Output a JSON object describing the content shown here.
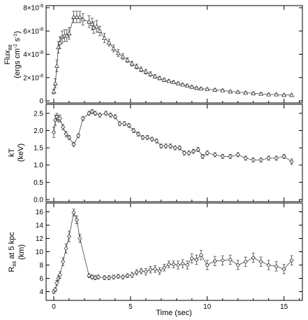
{
  "chart_data": [
    {
      "type": "line",
      "marker": "triangle",
      "ylabel_line1": "Flux",
      "ylabel_sub": "88",
      "ylabel_line2": "(ergs cm",
      "ylabel_sup1": "-2",
      "ylabel_line2b": " s",
      "ylabel_sup2": "-1",
      "ylabel_line2c": ")",
      "xlim": [
        -0.5,
        16.2
      ],
      "ylim": [
        0,
        8e-08
      ],
      "yticks": [
        {
          "value": 0,
          "mant": "0",
          "exp": ""
        },
        {
          "value": 2e-08,
          "mant": "2×10",
          "exp": "-8"
        },
        {
          "value": 4e-08,
          "mant": "4×10",
          "exp": "-8"
        },
        {
          "value": 6e-08,
          "mant": "6×10",
          "exp": "-8"
        },
        {
          "value": 8e-08,
          "mant": "8×10",
          "exp": "-8"
        }
      ],
      "x": [
        0.0,
        0.1,
        0.2,
        0.3,
        0.4,
        0.55,
        0.7,
        0.85,
        1.0,
        1.3,
        1.5,
        1.7,
        1.9,
        2.3,
        2.5,
        2.6,
        2.8,
        3.0,
        3.3,
        3.6,
        3.9,
        4.2,
        4.5,
        4.8,
        5.1,
        5.4,
        5.7,
        6.0,
        6.3,
        6.6,
        6.9,
        7.2,
        7.5,
        7.8,
        8.1,
        8.4,
        8.7,
        9.0,
        9.3,
        9.6,
        10.0,
        10.5,
        11.0,
        11.5,
        12.0,
        12.5,
        13.0,
        13.5,
        14.0,
        14.5,
        15.0,
        15.5
      ],
      "y": [
        8e-09,
        1.5e-08,
        3e-08,
        4.6e-08,
        5e-08,
        5.5e-08,
        5.6e-08,
        5.6e-08,
        5.8e-08,
        7.2e-08,
        7.2e-08,
        7.2e-08,
        7e-08,
        6.8e-08,
        6.6e-08,
        6.3e-08,
        6.4e-08,
        6e-08,
        5.4e-08,
        5e-08,
        4.5e-08,
        4.1e-08,
        3.8e-08,
        3.5e-08,
        3.2e-08,
        2.95e-08,
        2.7e-08,
        2.5e-08,
        2.3e-08,
        2.1e-08,
        1.95e-08,
        1.8e-08,
        1.7e-08,
        1.6e-08,
        1.5e-08,
        1.4e-08,
        1.3e-08,
        1.2e-08,
        1.1e-08,
        1.05e-08,
        1e-08,
        9.5e-09,
        9e-09,
        8e-09,
        7.5e-09,
        7e-09,
        6.5e-09,
        6e-09,
        5.5e-09,
        5.5e-09,
        5e-09,
        5e-09
      ],
      "err": [
        2e-09,
        4e-09,
        5e-09,
        5e-09,
        5e-09,
        5e-09,
        5e-09,
        5e-09,
        5e-09,
        5e-09,
        5e-09,
        5e-09,
        5e-09,
        5e-09,
        5e-09,
        5e-09,
        5e-09,
        4e-09,
        4e-09,
        3e-09,
        3e-09,
        3e-09,
        2.5e-09,
        2e-09,
        2e-09,
        2e-09,
        2e-09,
        2e-09,
        2e-09,
        1.5e-09,
        1.5e-09,
        1.5e-09,
        1.2e-09,
        1.2e-09,
        1.2e-09,
        1e-09,
        1e-09,
        1e-09,
        1e-09,
        1e-09,
        1e-09,
        1e-09,
        1e-09,
        1e-09,
        1e-09,
        1e-09,
        1e-09,
        1e-09,
        1e-09,
        1e-09,
        1e-09,
        1e-09
      ]
    },
    {
      "type": "line",
      "marker": "diamond",
      "ylabel_line1": "kT",
      "ylabel_line2": "(keV)",
      "xlim": [
        -0.5,
        16.2
      ],
      "ylim": [
        0,
        2.7
      ],
      "yticks": [
        {
          "value": 0.0,
          "label": "0.0"
        },
        {
          "value": 0.5,
          "label": "0.5"
        },
        {
          "value": 1.0,
          "label": "1.0"
        },
        {
          "value": 1.5,
          "label": "1.5"
        },
        {
          "value": 2.0,
          "label": "2.0"
        },
        {
          "value": 2.5,
          "label": "2.5"
        }
      ],
      "x": [
        0.0,
        0.1,
        0.2,
        0.3,
        0.4,
        0.6,
        0.8,
        1.0,
        1.3,
        1.6,
        1.9,
        2.3,
        2.5,
        2.7,
        3.0,
        3.4,
        3.7,
        4.0,
        4.3,
        4.6,
        4.9,
        5.2,
        5.5,
        5.8,
        6.1,
        6.4,
        6.7,
        7.0,
        7.3,
        7.6,
        7.9,
        8.2,
        8.5,
        8.8,
        9.1,
        9.4,
        9.7,
        10.0,
        10.5,
        11.0,
        11.5,
        12.0,
        12.5,
        13.0,
        13.5,
        14.0,
        14.5,
        15.0,
        15.5
      ],
      "y": [
        1.95,
        2.3,
        2.4,
        2.35,
        2.35,
        2.1,
        1.9,
        1.8,
        1.6,
        1.85,
        2.35,
        2.5,
        2.55,
        2.5,
        2.45,
        2.5,
        2.45,
        2.4,
        2.2,
        2.2,
        2.15,
        2.0,
        1.9,
        1.8,
        1.8,
        1.75,
        1.7,
        1.55,
        1.55,
        1.55,
        1.5,
        1.5,
        1.35,
        1.35,
        1.4,
        1.45,
        1.25,
        1.35,
        1.3,
        1.25,
        1.25,
        1.3,
        1.2,
        1.15,
        1.15,
        1.2,
        1.2,
        1.25,
        1.1
      ],
      "err": [
        0.15,
        0.15,
        0.1,
        0.1,
        0.1,
        0.08,
        0.08,
        0.06,
        0.06,
        0.06,
        0.06,
        0.06,
        0.06,
        0.06,
        0.06,
        0.06,
        0.06,
        0.06,
        0.06,
        0.06,
        0.06,
        0.06,
        0.06,
        0.06,
        0.06,
        0.06,
        0.06,
        0.06,
        0.06,
        0.06,
        0.06,
        0.06,
        0.06,
        0.06,
        0.06,
        0.06,
        0.06,
        0.06,
        0.06,
        0.06,
        0.06,
        0.06,
        0.06,
        0.06,
        0.06,
        0.06,
        0.06,
        0.06,
        0.08
      ]
    },
    {
      "type": "line",
      "marker": "diamond",
      "ylabel_line1": "R",
      "ylabel_sub": "88",
      "ylabel_line1b": " at 5 kpc",
      "ylabel_line2": "(km)",
      "xlabel": "Time (sec)",
      "xlim": [
        -0.5,
        16.2
      ],
      "ylim": [
        3,
        17
      ],
      "xticks": [
        {
          "value": 0,
          "label": "0"
        },
        {
          "value": 5,
          "label": "5"
        },
        {
          "value": 10,
          "label": "10"
        },
        {
          "value": 15,
          "label": "15"
        }
      ],
      "yticks": [
        {
          "value": 4,
          "label": "4"
        },
        {
          "value": 6,
          "label": "6"
        },
        {
          "value": 8,
          "label": "8"
        },
        {
          "value": 10,
          "label": "10"
        },
        {
          "value": 12,
          "label": "12"
        },
        {
          "value": 14,
          "label": "14"
        },
        {
          "value": 16,
          "label": "16"
        }
      ],
      "x": [
        0.0,
        0.1,
        0.2,
        0.3,
        0.4,
        0.6,
        0.8,
        1.0,
        1.3,
        1.5,
        1.7,
        2.3,
        2.5,
        2.7,
        2.9,
        3.3,
        3.6,
        3.9,
        4.2,
        4.5,
        4.8,
        5.1,
        5.4,
        5.7,
        6.0,
        6.3,
        6.6,
        6.9,
        7.2,
        7.5,
        7.8,
        8.1,
        8.4,
        8.7,
        9.0,
        9.3,
        9.6,
        10.0,
        10.5,
        11.0,
        11.5,
        12.0,
        12.5,
        13.0,
        13.5,
        14.0,
        14.5,
        15.0,
        15.5
      ],
      "y": [
        4.0,
        4.3,
        5.3,
        6.0,
        6.5,
        8.5,
        10.5,
        12.3,
        15.9,
        14.8,
        12.0,
        6.4,
        6.2,
        6.1,
        6.2,
        6.1,
        6.1,
        6.2,
        6.3,
        6.2,
        6.4,
        6.5,
        6.9,
        7.1,
        7.0,
        7.3,
        7.4,
        7.1,
        7.6,
        8.1,
        8.1,
        8.0,
        8.2,
        8.0,
        9.0,
        8.8,
        9.5,
        8.0,
        8.6,
        8.7,
        8.8,
        8.0,
        8.5,
        9.1,
        8.5,
        8.0,
        7.8,
        7.4,
        8.7
      ],
      "err": [
        0.3,
        0.3,
        0.4,
        0.4,
        0.5,
        0.6,
        0.7,
        0.8,
        0.5,
        0.6,
        0.6,
        0.3,
        0.3,
        0.3,
        0.3,
        0.3,
        0.3,
        0.3,
        0.3,
        0.3,
        0.3,
        0.4,
        0.4,
        0.4,
        0.5,
        0.5,
        0.5,
        0.5,
        0.5,
        0.5,
        0.5,
        0.6,
        0.6,
        0.6,
        0.7,
        0.7,
        0.7,
        0.7,
        0.7,
        0.7,
        0.7,
        0.7,
        0.7,
        0.7,
        0.7,
        0.7,
        0.7,
        0.7,
        0.7
      ]
    }
  ]
}
